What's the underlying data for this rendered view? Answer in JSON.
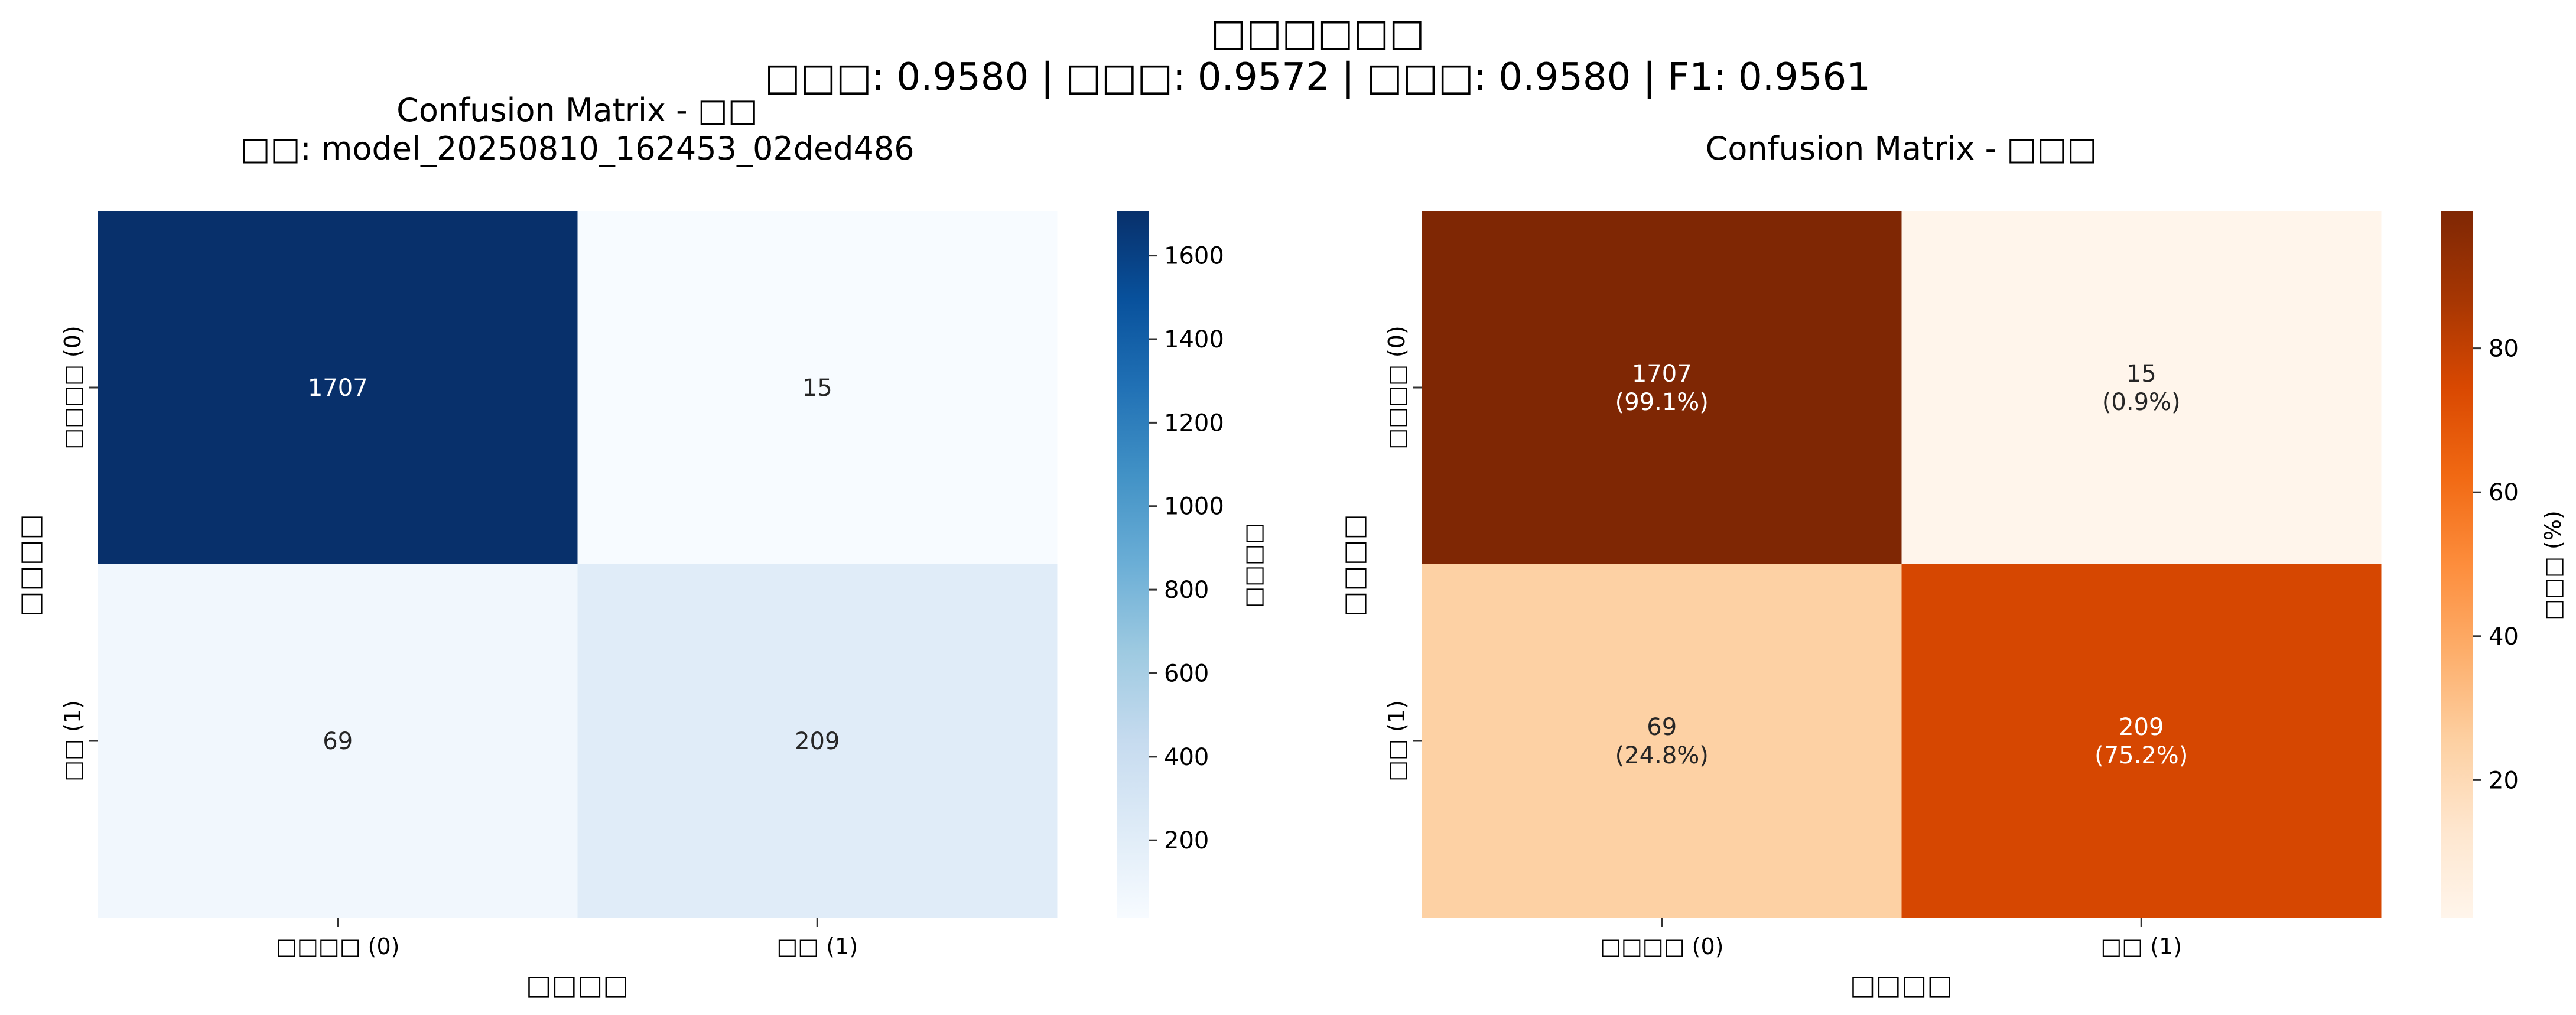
{
  "figure": {
    "suptitle_line1": "□□□□□□",
    "suptitle_line2": "□□□: 0.9580 | □□□: 0.9572 | □□□: 0.9580 | F1: 0.9561"
  },
  "chart_data": [
    {
      "type": "heatmap",
      "title_line1": "Confusion Matrix - □□",
      "title_line2": "□□: model_20250810_162453_02ded486",
      "xlabel": "□□□□",
      "ylabel": "□□□□",
      "row_labels": [
        "□□□□ (0)",
        "□□ (1)"
      ],
      "col_labels": [
        "□□□□ (0)",
        "□□ (1)"
      ],
      "values": [
        [
          1707,
          15
        ],
        [
          69,
          209
        ]
      ],
      "cell_text": [
        [
          "1707",
          "15"
        ],
        [
          "69",
          "209"
        ]
      ],
      "colorbar_label": "□□□□",
      "colorbar_ticks": [
        200,
        400,
        600,
        800,
        1000,
        1200,
        1400,
        1600
      ],
      "colorbar_range": [
        15,
        1707
      ],
      "colormap": "Blues",
      "colors": [
        "#f7fbff",
        "#deebf7",
        "#c6dbef",
        "#9ecae1",
        "#6baed6",
        "#4292c6",
        "#2171b5",
        "#08519c",
        "#08306b"
      ]
    },
    {
      "type": "heatmap",
      "title_line1": "Confusion Matrix - □□□",
      "title_line2": "",
      "xlabel": "□□□□",
      "ylabel": "□□□□",
      "row_labels": [
        "□□□□ (0)",
        "□□ (1)"
      ],
      "col_labels": [
        "□□□□ (0)",
        "□□ (1)"
      ],
      "values": [
        [
          99.1,
          0.9
        ],
        [
          24.8,
          75.2
        ]
      ],
      "cell_text": [
        [
          "1707",
          "15"
        ],
        [
          "69",
          "209"
        ]
      ],
      "cell_subtext": [
        [
          "(99.1%)",
          "(0.9%)"
        ],
        [
          "(24.8%)",
          "(75.2%)"
        ]
      ],
      "colorbar_label": "□□□ (%)",
      "colorbar_ticks": [
        20,
        40,
        60,
        80
      ],
      "colorbar_range": [
        0.9,
        99.1
      ],
      "colormap": "Oranges",
      "colors": [
        "#fff5eb",
        "#fee6ce",
        "#fdd0a2",
        "#fdae6b",
        "#fd8d3c",
        "#f16913",
        "#d94801",
        "#a63603",
        "#7f2704"
      ]
    }
  ]
}
